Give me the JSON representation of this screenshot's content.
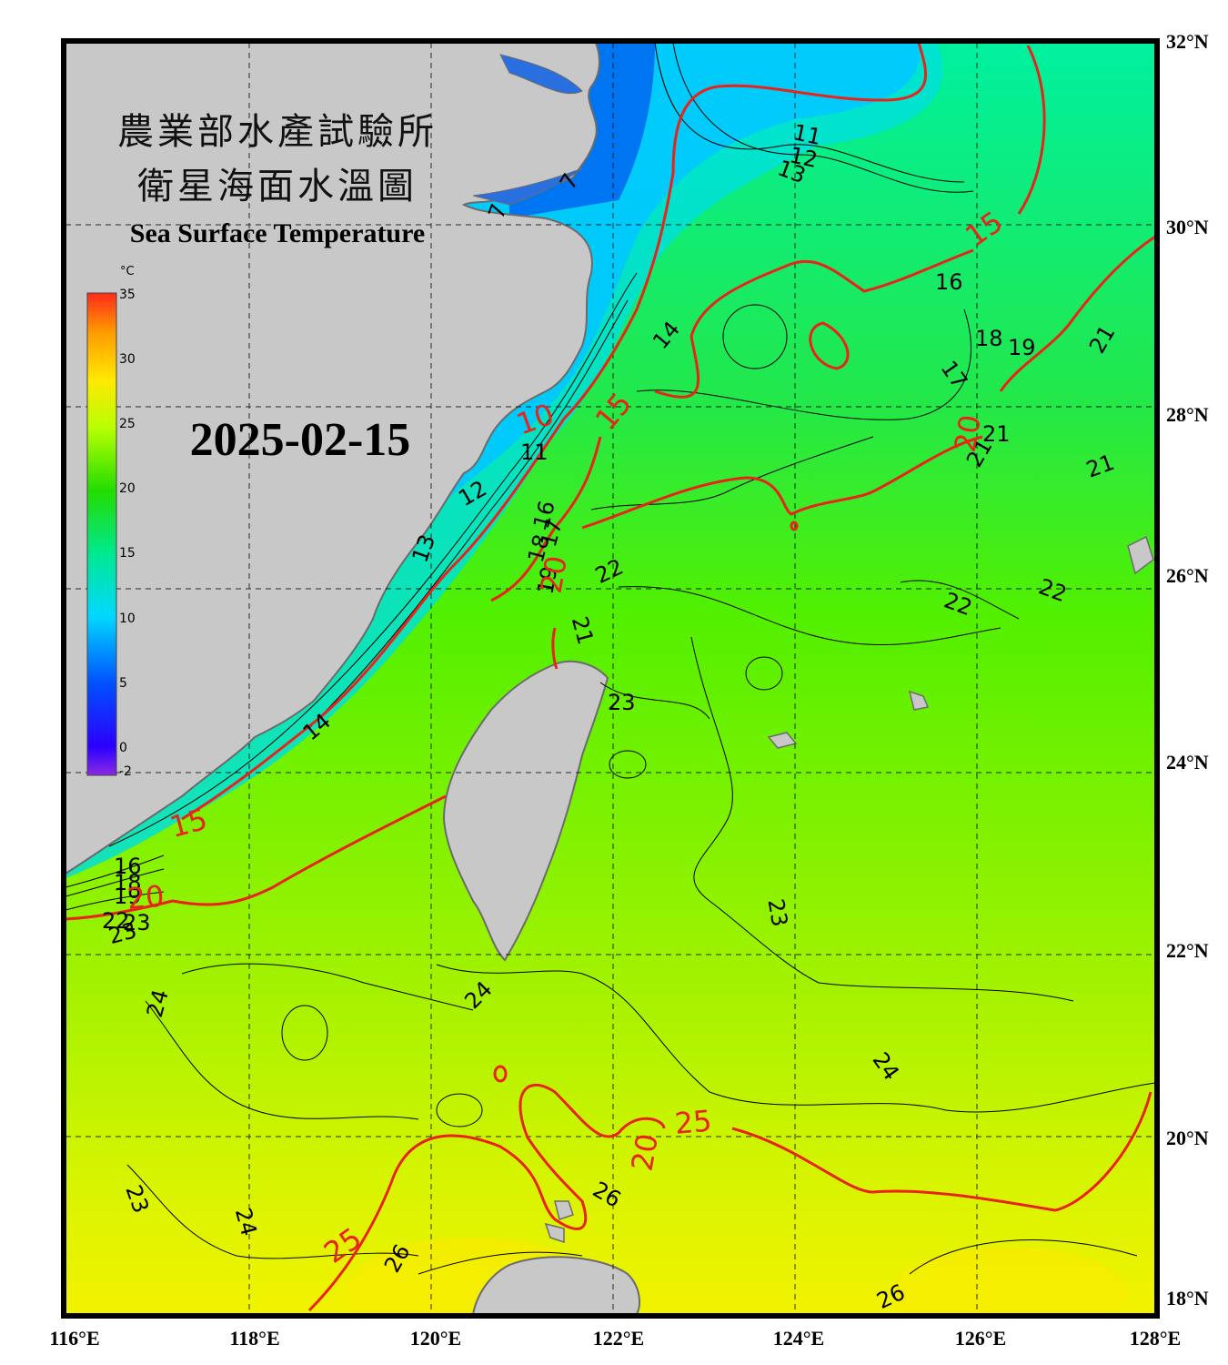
{
  "title": {
    "zh_line1": "農業部水產試驗所",
    "zh_line2": "衛星海面水溫圖",
    "en": "Sea Surface Temperature"
  },
  "date": "2025-02-15",
  "colorbar": {
    "unit": "°C",
    "ticks": [
      "35",
      "30",
      "25",
      "20",
      "15",
      "10",
      "5",
      "0",
      "-2"
    ]
  },
  "axes": {
    "lon_labels": [
      "116°E",
      "118°E",
      "120°E",
      "122°E",
      "124°E",
      "126°E",
      "128°E"
    ],
    "lat_labels": [
      "32°N",
      "30°N",
      "28°N",
      "26°N",
      "24°N",
      "22°N",
      "20°N",
      "18°N"
    ]
  },
  "contour_labels": {
    "black": [
      "7",
      "7",
      "11",
      "12",
      "13",
      "14",
      "16",
      "17",
      "18",
      "19",
      "21",
      "21",
      "21",
      "21",
      "22",
      "22",
      "22",
      "23",
      "23",
      "24",
      "24",
      "24",
      "24",
      "23",
      "26",
      "26",
      "26",
      "11",
      "12",
      "13",
      "14",
      "16",
      "17",
      "18",
      "19",
      "21",
      "23",
      "16",
      "18",
      "19",
      "22",
      "23"
    ],
    "red": [
      "15",
      "10",
      "15",
      "20",
      "20",
      "15",
      "20",
      "25",
      "25",
      "20"
    ]
  },
  "colors": {
    "land": "#c8c8c8",
    "coast": "#6b6b6b",
    "frame": "#000000",
    "isotherm_major": "#e8241a",
    "isotherm_minor": "#000000"
  }
}
